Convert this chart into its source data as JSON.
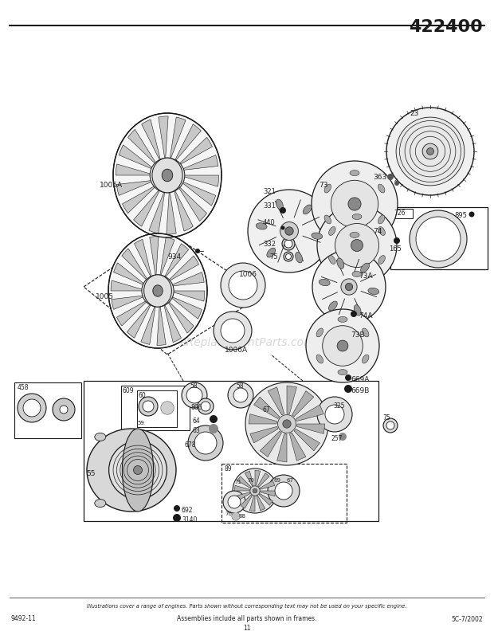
{
  "title": "422400",
  "title_fontsize": 16,
  "footer_left": "9492-11",
  "footer_center": "Assemblies include all parts shown in frames.",
  "footer_page": "11",
  "footer_right": "5C-7/2002",
  "footer_italic_text": "Illustrations cover a range of engines. Parts shown without corresponding text may not be used on your specific engine.",
  "watermark": "eReplacementParts.com",
  "bg_color": "#ffffff",
  "line_color": "#1a1a1a",
  "text_color": "#222222",
  "watermark_color": "#bbbbbb"
}
